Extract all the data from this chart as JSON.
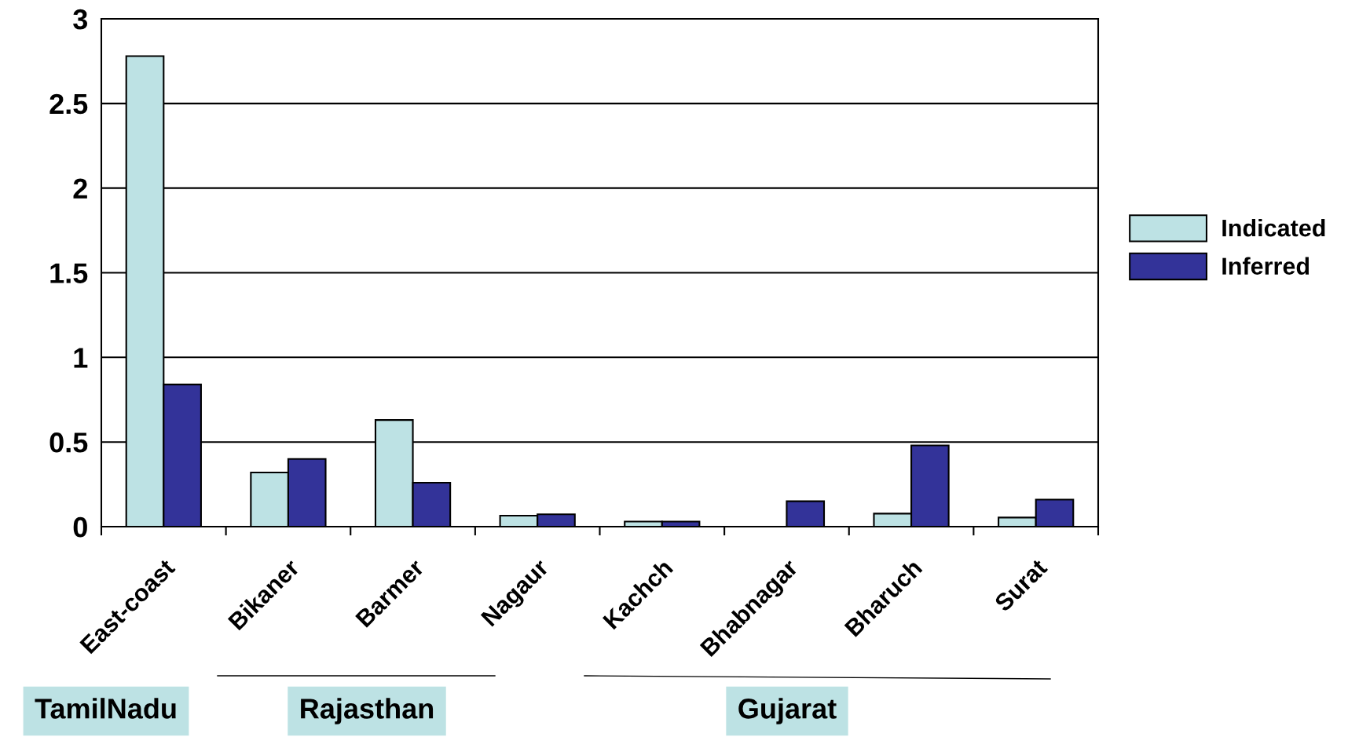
{
  "chart_data": {
    "type": "bar",
    "categories": [
      "East-coast",
      "Bikaner",
      "Barmer",
      "Nagaur",
      "Kachch",
      "Bhabnagar",
      "Bharuch",
      "Surat"
    ],
    "series": [
      {
        "name": "Indicated",
        "color": "#bde2e4",
        "values": [
          2.78,
          0.32,
          0.63,
          0.065,
          0.03,
          null,
          0.077,
          0.054
        ]
      },
      {
        "name": "Inferred",
        "color": "#333399",
        "values": [
          0.84,
          0.4,
          0.26,
          0.073,
          0.03,
          0.15,
          0.48,
          0.16
        ]
      }
    ],
    "ylim": [
      0,
      3
    ],
    "yticks": [
      0,
      0.5,
      1,
      1.5,
      2,
      2.5,
      3
    ],
    "grid": "y",
    "legend": "right",
    "annotations": [
      "TamilNadu",
      "Rajasthan",
      "Gujarat"
    ]
  }
}
